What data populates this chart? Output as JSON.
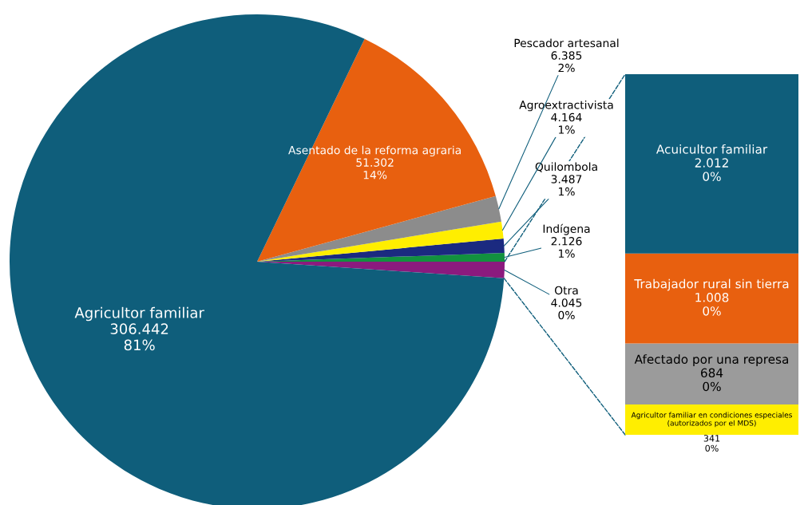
{
  "chart_data": [
    {
      "type": "pie",
      "categories": [
        "Otra",
        "Indígena",
        "Quilombola",
        "Agroextractivista",
        "Pescador artesanal",
        "Asentado de la reforma agraria",
        "Agricultor familiar"
      ],
      "values": [
        4045,
        2126,
        3487,
        4164,
        6385,
        51302,
        306442
      ],
      "colors": [
        "#8b1a7e",
        "#12913f",
        "#1b2a80",
        "#ffee00",
        "#8c8c8c",
        "#e8600f",
        "#0f5e7b"
      ],
      "value_labels": [
        "4.045\n0%",
        "2.126\n1%",
        "3.487\n1%",
        "4.164\n1%",
        "6.385\n2%",
        "51.302\n14%",
        "306.442\n81%"
      ]
    },
    {
      "type": "bar",
      "stacked": true,
      "categories": [
        null
      ],
      "series": [
        {
          "name": "Agricultor familiar en condiciones especiales (autorizados por el MDS)",
          "color": "#ffee00",
          "values": [
            341
          ],
          "value_labels": [
            "341\n0%"
          ]
        },
        {
          "name": "Afectado por una represa",
          "color": "#9b9b9b",
          "values": [
            684
          ],
          "value_labels": [
            "684\n0%"
          ]
        },
        {
          "name": "Trabajador rural sin tierra",
          "color": "#e8600f",
          "values": [
            1008
          ],
          "value_labels": [
            "1.008\n0%"
          ]
        },
        {
          "name": "Acuicultor familiar",
          "color": "#0f5e7b",
          "values": [
            2012
          ],
          "value_labels": [
            "2.012\n0%"
          ]
        }
      ]
    }
  ]
}
